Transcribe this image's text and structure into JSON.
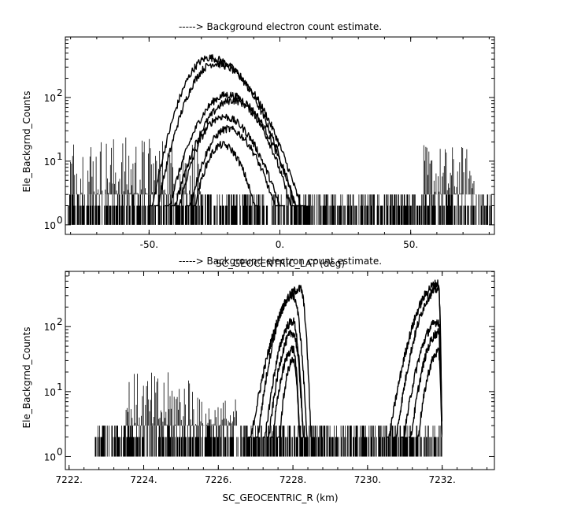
{
  "chart_data": [
    {
      "type": "line",
      "title": "-----> Background electron count estimate.",
      "xlabel": "SC_GEOCENTRIC_LAT (deg)",
      "ylabel": "Ele_Backgrnd_Counts",
      "xlim": [
        -82,
        82
      ],
      "ylim_log10": [
        -0.15,
        2.95
      ],
      "yscale": "log",
      "x_ticks": [
        -50,
        0,
        50
      ],
      "x_tick_labels": [
        "-50.",
        "0.",
        "50."
      ],
      "y_ticks": [
        1,
        10,
        100
      ],
      "y_tick_labels": [
        "10",
        "10",
        "10"
      ],
      "y_tick_exponents": [
        "0",
        "1",
        "2"
      ],
      "noise_floor": {
        "x_range": [
          -81,
          81
        ],
        "min": 1,
        "max": 3
      },
      "series": [
        {
          "peak_x": -27,
          "peak_y": 420,
          "x_range": [
            -50,
            8
          ]
        },
        {
          "peak_x": -25,
          "peak_y": 340,
          "x_range": [
            -48,
            10
          ]
        },
        {
          "peak_x": -20,
          "peak_y": 110,
          "x_range": [
            -44,
            8
          ]
        },
        {
          "peak_x": -18,
          "peak_y": 90,
          "x_range": [
            -42,
            6
          ]
        },
        {
          "peak_x": -22,
          "peak_y": 50,
          "x_range": [
            -40,
            2
          ]
        },
        {
          "peak_x": -20,
          "peak_y": 32,
          "x_range": [
            -36,
            0
          ]
        },
        {
          "peak_x": -22,
          "peak_y": 18,
          "x_range": [
            -34,
            -8
          ]
        }
      ],
      "spikes": [
        {
          "x_range": [
            -80,
            -30
          ],
          "max": 25
        },
        {
          "x_range": [
            55,
            75
          ],
          "max": 18
        }
      ]
    },
    {
      "type": "line",
      "title": "-----> Background electron count estimate.",
      "xlabel": "SC_GEOCENTRIC_R (km)",
      "ylabel": "Ele_Backgrnd_Counts",
      "xlim": [
        7221.9,
        7233.4
      ],
      "ylim_log10": [
        -0.2,
        2.85
      ],
      "yscale": "log",
      "x_ticks": [
        7222,
        7224,
        7226,
        7228,
        7230,
        7232
      ],
      "x_tick_labels": [
        "7222.",
        "7224.",
        "7226.",
        "7228.",
        "7230.",
        "7232."
      ],
      "y_ticks": [
        1,
        10,
        100
      ],
      "y_tick_labels": [
        "10",
        "10",
        "10"
      ],
      "y_tick_exponents": [
        "0",
        "1",
        "2"
      ],
      "noise_floor": {
        "x_range": [
          7222.7,
          7232.0
        ],
        "min": 1,
        "max": 3
      },
      "series": [
        {
          "start_x": 7226.8,
          "peak_x": 7228.2,
          "end_x": 7228.5,
          "peak_y": 380
        },
        {
          "start_x": 7227.0,
          "peak_x": 7228.0,
          "end_x": 7228.4,
          "peak_y": 300
        },
        {
          "start_x": 7227.2,
          "peak_x": 7228.0,
          "end_x": 7228.3,
          "peak_y": 120
        },
        {
          "start_x": 7227.3,
          "peak_x": 7228.0,
          "end_x": 7228.3,
          "peak_y": 80
        },
        {
          "start_x": 7227.4,
          "peak_x": 7228.0,
          "end_x": 7228.2,
          "peak_y": 45
        },
        {
          "start_x": 7227.6,
          "peak_x": 7228.0,
          "end_x": 7228.2,
          "peak_y": 30
        },
        {
          "start_x": 7230.5,
          "peak_x": 7231.9,
          "end_x": 7232.0,
          "peak_y": 460
        },
        {
          "start_x": 7230.7,
          "peak_x": 7231.9,
          "end_x": 7232.0,
          "peak_y": 380
        },
        {
          "start_x": 7230.9,
          "peak_x": 7231.9,
          "end_x": 7232.0,
          "peak_y": 120
        },
        {
          "start_x": 7231.1,
          "peak_x": 7231.9,
          "end_x": 7232.0,
          "peak_y": 80
        },
        {
          "start_x": 7231.3,
          "peak_x": 7231.9,
          "end_x": 7232.0,
          "peak_y": 40
        }
      ],
      "spikes": [
        {
          "x_range": [
            7223.5,
            7225.5
          ],
          "max": 20
        },
        {
          "x_range": [
            7225.5,
            7226.5
          ],
          "max": 8
        }
      ]
    }
  ]
}
